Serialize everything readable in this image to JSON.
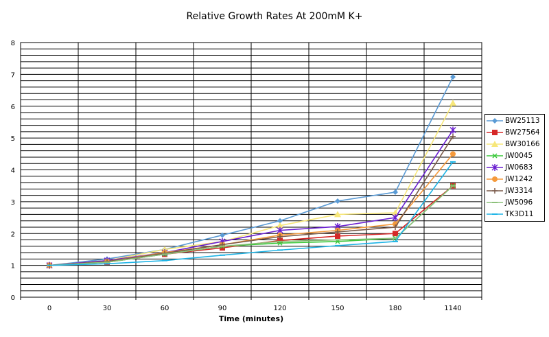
{
  "chart_data": {
    "type": "line",
    "title": "Relative Growth Rates At 200mM K+",
    "xlabel": "Time (minutes)",
    "ylabel": "",
    "categories": [
      "0",
      "30",
      "60",
      "90",
      "120",
      "150",
      "180",
      "1140"
    ],
    "ylim": [
      0,
      8
    ],
    "yticks": [
      "0",
      "1",
      "2",
      "3",
      "4",
      "5",
      "6",
      "7",
      "8"
    ],
    "grid": true,
    "legend_position": "right",
    "series": [
      {
        "name": "BW25113",
        "color": "#5b9bd5",
        "marker": "diamond",
        "values": [
          1,
          1.2,
          1.5,
          1.95,
          2.4,
          3.02,
          3.3,
          6.92
        ]
      },
      {
        "name": "BW27564",
        "color": "#d62828",
        "marker": "square",
        "values": [
          1,
          1.1,
          1.35,
          1.55,
          1.78,
          1.92,
          2.0,
          3.5
        ]
      },
      {
        "name": "BW30166",
        "color": "#f7e77a",
        "marker": "triangle",
        "values": [
          1,
          1.15,
          1.5,
          1.75,
          2.25,
          2.6,
          2.65,
          6.1
        ]
      },
      {
        "name": "JW0045",
        "color": "#3cc83c",
        "marker": "x",
        "values": [
          1,
          1.1,
          1.35,
          1.6,
          1.7,
          1.75,
          1.85,
          3.5
        ]
      },
      {
        "name": "JW0683",
        "color": "#6a1fd1",
        "marker": "star",
        "values": [
          1,
          1.15,
          1.4,
          1.75,
          2.1,
          2.22,
          2.5,
          5.25
        ]
      },
      {
        "name": "JW1242",
        "color": "#f59a3c",
        "marker": "circle",
        "values": [
          1,
          1.12,
          1.4,
          1.65,
          1.95,
          2.1,
          2.3,
          4.5
        ]
      },
      {
        "name": "JW3314",
        "color": "#7a5a4a",
        "marker": "plus",
        "values": [
          1,
          1.12,
          1.38,
          1.65,
          1.9,
          2.05,
          2.2,
          5.05
        ]
      },
      {
        "name": "JW5096",
        "color": "#8cc07a",
        "marker": "dash",
        "values": [
          1,
          1.1,
          1.35,
          1.6,
          1.75,
          1.8,
          1.85,
          3.5
        ]
      },
      {
        "name": "TK3D11",
        "color": "#1eb4e6",
        "marker": "dash",
        "values": [
          1,
          1.05,
          1.15,
          1.32,
          1.48,
          1.62,
          1.75,
          4.25
        ]
      }
    ]
  }
}
